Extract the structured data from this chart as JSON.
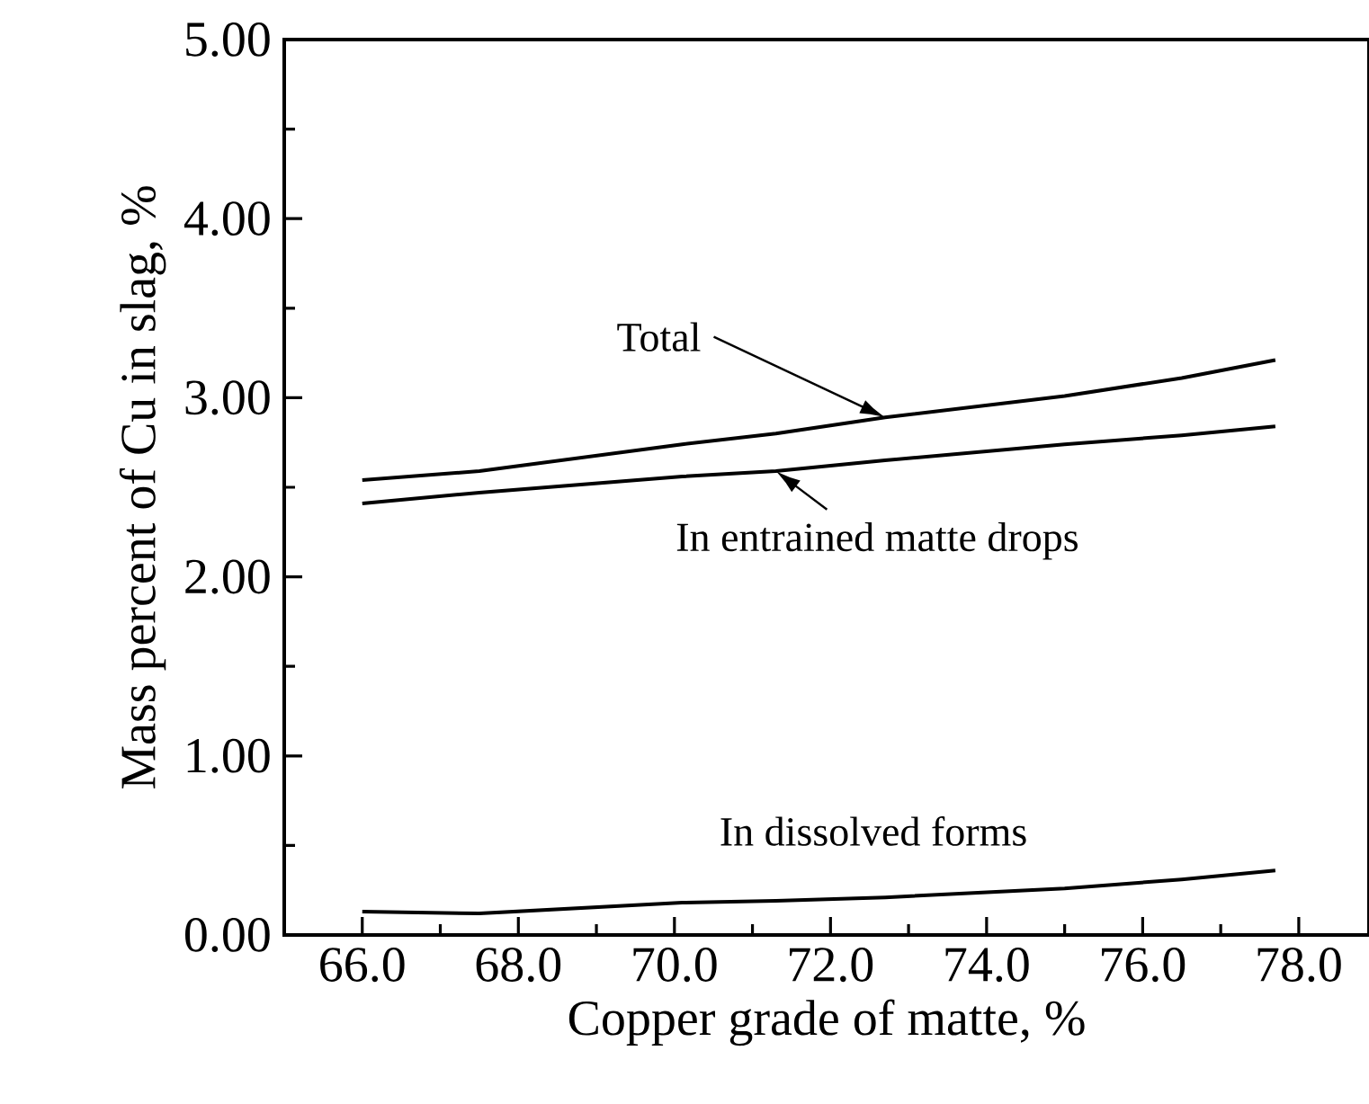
{
  "chart_data": {
    "type": "line",
    "xlabel": "Copper grade of  matte, %",
    "ylabel": "Mass percent of Cu in slag, %",
    "xlim": [
      65,
      78.9
    ],
    "ylim": [
      0,
      5
    ],
    "xticks": [
      {
        "value": 66,
        "label": "66.0"
      },
      {
        "value": 68,
        "label": "68.0"
      },
      {
        "value": 70,
        "label": "70.0"
      },
      {
        "value": 72,
        "label": "72.0"
      },
      {
        "value": 74,
        "label": "74.0"
      },
      {
        "value": 76,
        "label": "76.0"
      },
      {
        "value": 78,
        "label": "78.0"
      }
    ],
    "yticks": [
      {
        "value": 0,
        "label": "0.00"
      },
      {
        "value": 1,
        "label": "1.00"
      },
      {
        "value": 2,
        "label": "2.00"
      },
      {
        "value": 3,
        "label": "3.00"
      },
      {
        "value": 4,
        "label": "4.00"
      },
      {
        "value": 5,
        "label": "5.00"
      }
    ],
    "x": [
      66.0,
      67.5,
      70.1,
      71.3,
      72.7,
      75.0,
      76.5,
      77.7
    ],
    "series": [
      {
        "color": "#000000",
        "values": [
          2.54,
          2.59,
          2.74,
          2.8,
          2.89,
          3.01,
          3.11,
          3.21
        ]
      },
      {
        "color": "#000000",
        "values": [
          2.41,
          2.47,
          2.56,
          2.59,
          2.65,
          2.74,
          2.79,
          2.84
        ]
      },
      {
        "color": "#000000",
        "values": [
          0.13,
          0.12,
          0.18,
          0.19,
          0.21,
          0.26,
          0.31,
          0.36
        ]
      }
    ],
    "annotations": [
      "Total",
      {
        "text": "In entrained matte drops",
        "x": 71.3,
        "y": 2.59
      },
      {
        "text": "In dissolved forms",
        "x": 72.5,
        "y": 0.21
      }
    ],
    "grid": false,
    "marker": "none",
    "line_style": "solid"
  }
}
